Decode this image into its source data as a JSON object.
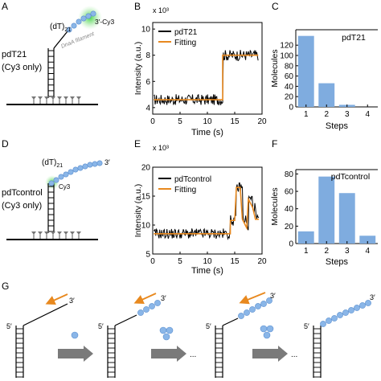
{
  "panels": {
    "A": "A",
    "B": "B",
    "C": "C",
    "D": "D",
    "E": "E",
    "F": "F",
    "G": "G"
  },
  "schematic_A": {
    "dt_label": "(dT)",
    "dt_subscript": "21",
    "dye_label": "3′-Cy3",
    "filament_label": "DnaA filament",
    "construct": "pdT21",
    "note": "(Cy3 only)"
  },
  "schematic_D": {
    "dt_label": "(dT)",
    "dt_subscript": "21",
    "end_label": "3′",
    "dye_label": "Cy3",
    "construct": "pdTcontrol",
    "note": "(Cy3 only)"
  },
  "schematic_G": {
    "five_prime": "5′",
    "three_prime": "3′",
    "ellipsis": "..."
  },
  "chart_data": [
    {
      "id": "B",
      "type": "line",
      "ylabel": "Intensity (a.u.)",
      "xlabel": "Time (s)",
      "multiplier": "x 10³",
      "xlim": [
        0,
        20
      ],
      "ylim": [
        3.5,
        10.5
      ],
      "xticks": [
        0,
        5,
        10,
        15,
        20
      ],
      "yticks": [
        4,
        6,
        8,
        10
      ],
      "legend": [
        {
          "name": "pdT21",
          "color": "#000000"
        },
        {
          "name": "Fitting",
          "color": "#e8891f"
        }
      ],
      "fitting": [
        [
          0.2,
          4.6
        ],
        [
          12.8,
          4.6
        ],
        [
          12.8,
          8.0
        ],
        [
          19.3,
          8.0
        ]
      ]
    },
    {
      "id": "C",
      "type": "bar",
      "ylabel": "Molecules",
      "xlabel": "Steps",
      "title": "pdT21",
      "categories": [
        "1",
        "2",
        "3",
        "4"
      ],
      "values": [
        138,
        46,
        4,
        0
      ],
      "ylim": [
        0,
        150
      ],
      "yticks": [
        0,
        20,
        40,
        60,
        80,
        100,
        120
      ],
      "color": "#7facdf"
    },
    {
      "id": "E",
      "type": "line",
      "ylabel": "Intensity (a.u.)",
      "xlabel": "Time (s)",
      "multiplier": "x 10³",
      "xlim": [
        0,
        20
      ],
      "ylim": [
        5,
        20
      ],
      "xticks": [
        0,
        5,
        10,
        15,
        20
      ],
      "yticks": [
        5,
        10,
        15,
        20
      ],
      "legend": [
        {
          "name": "pdTcontrol",
          "color": "#000000"
        },
        {
          "name": "Fitting",
          "color": "#e8891f"
        }
      ],
      "fitting": [
        [
          0.2,
          8.5
        ],
        [
          14.2,
          8.5
        ],
        [
          14.2,
          10.8
        ],
        [
          15.0,
          10.8
        ],
        [
          15.3,
          16.5
        ],
        [
          16.0,
          16.5
        ],
        [
          16.4,
          11
        ],
        [
          17.2,
          9.5
        ],
        [
          17.5,
          14.5
        ],
        [
          18.3,
          13
        ],
        [
          18.8,
          11
        ],
        [
          19.4,
          11
        ]
      ]
    },
    {
      "id": "F",
      "type": "bar",
      "ylabel": "Molecules",
      "xlabel": "Steps",
      "title": "pdTcontrol",
      "categories": [
        "1",
        "2",
        "3",
        "4"
      ],
      "values": [
        14,
        77,
        58,
        9
      ],
      "ylim": [
        0,
        85
      ],
      "yticks": [
        0,
        20,
        40,
        60,
        80
      ],
      "color": "#7facdf"
    }
  ]
}
